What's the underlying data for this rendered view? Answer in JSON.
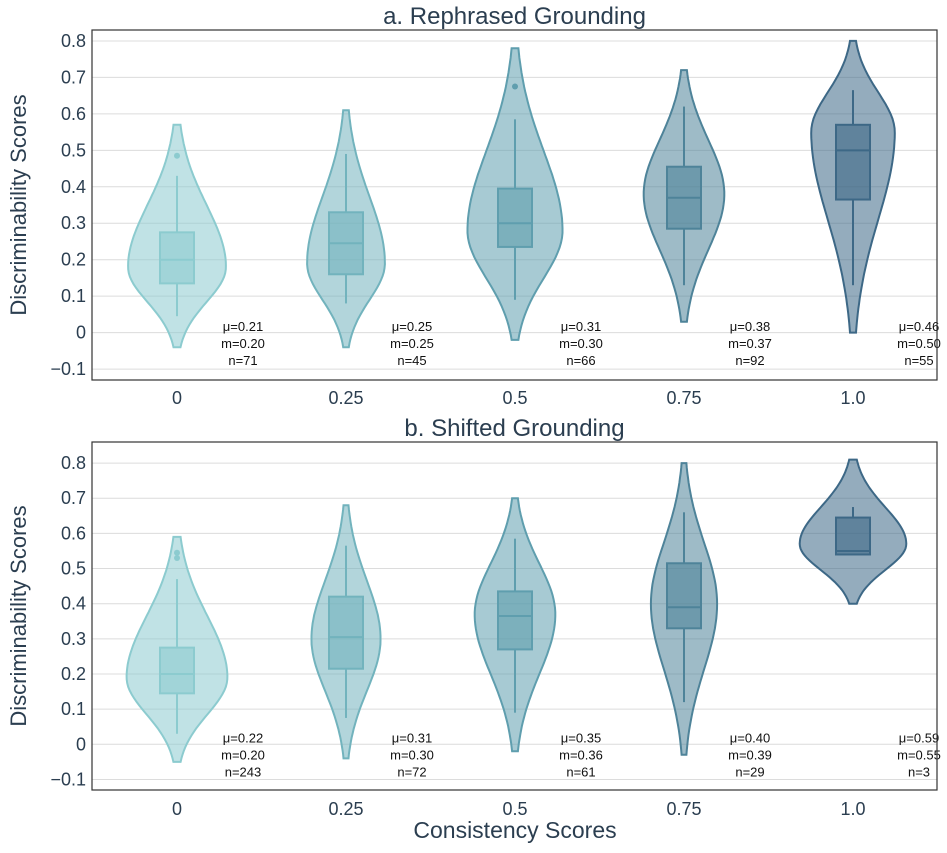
{
  "figure": {
    "xlabel": "Consistency Scores",
    "ylabel": "Discriminability Scores"
  },
  "chart_data": [
    {
      "type": "violin",
      "title": "a. Rephrased Grounding",
      "xlabel": "",
      "ylabel": "Discriminability Scores",
      "ylim": [
        -0.13,
        0.83
      ],
      "yticks": [
        -0.1,
        0,
        0.1,
        0.2,
        0.3,
        0.4,
        0.5,
        0.6,
        0.7,
        0.8
      ],
      "ytick_labels": [
        "−0.1",
        "0",
        "0.1",
        "0.2",
        "0.3",
        "0.4",
        "0.5",
        "0.6",
        "0.7",
        "0.8"
      ],
      "categories": [
        "0",
        "0.25",
        "0.5",
        "0.75",
        "1.0"
      ],
      "grid": true,
      "series": [
        {
          "category": "0",
          "color": "#8ccbcf",
          "violin": {
            "min": -0.04,
            "max": 0.57,
            "mode": 0.18,
            "peak": 0.68
          },
          "box": {
            "q1": 0.135,
            "median": 0.2,
            "q3": 0.275,
            "whisker_low": 0.045,
            "whisker_high": 0.43
          },
          "outliers": [
            0.485
          ],
          "annotation": [
            "μ=0.21",
            "m=0.20",
            "n=71"
          ]
        },
        {
          "category": "0.25",
          "color": "#72b3bd",
          "violin": {
            "min": -0.04,
            "max": 0.61,
            "mode": 0.19,
            "peak": 0.54
          },
          "box": {
            "q1": 0.16,
            "median": 0.245,
            "q3": 0.33,
            "whisker_low": 0.08,
            "whisker_high": 0.49
          },
          "outliers": [],
          "annotation": [
            "μ=0.25",
            "m=0.25",
            "n=45"
          ]
        },
        {
          "category": "0.5",
          "color": "#5f9eae",
          "violin": {
            "min": -0.02,
            "max": 0.78,
            "mode": 0.28,
            "peak": 0.66
          },
          "box": {
            "q1": 0.235,
            "median": 0.3,
            "q3": 0.395,
            "whisker_low": 0.09,
            "whisker_high": 0.585
          },
          "outliers": [
            0.675
          ],
          "annotation": [
            "μ=0.31",
            "m=0.30",
            "n=66"
          ]
        },
        {
          "category": "0.75",
          "color": "#4e8399",
          "violin": {
            "min": 0.03,
            "max": 0.72,
            "mode": 0.38,
            "peak": 0.56
          },
          "box": {
            "q1": 0.285,
            "median": 0.37,
            "q3": 0.455,
            "whisker_low": 0.13,
            "whisker_high": 0.62
          },
          "outliers": [],
          "annotation": [
            "μ=0.38",
            "m=0.37",
            "n=92"
          ]
        },
        {
          "category": "1.0",
          "color": "#3d6886",
          "violin": {
            "min": 0.0,
            "max": 0.8,
            "mode": 0.55,
            "peak": 0.58
          },
          "box": {
            "q1": 0.365,
            "median": 0.5,
            "q3": 0.57,
            "whisker_low": 0.13,
            "whisker_high": 0.665
          },
          "outliers": [],
          "annotation": [
            "μ=0.46",
            "m=0.50",
            "n=55"
          ]
        }
      ]
    },
    {
      "type": "violin",
      "title": "b. Shifted Grounding",
      "xlabel": "Consistency Scores",
      "ylabel": "Discriminability Scores",
      "ylim": [
        -0.13,
        0.86
      ],
      "yticks": [
        -0.1,
        0,
        0.1,
        0.2,
        0.3,
        0.4,
        0.5,
        0.6,
        0.7,
        0.8
      ],
      "ytick_labels": [
        "−0.1",
        "0",
        "0.1",
        "0.2",
        "0.3",
        "0.4",
        "0.5",
        "0.6",
        "0.7",
        "0.8"
      ],
      "categories": [
        "0",
        "0.25",
        "0.5",
        "0.75",
        "1.0"
      ],
      "grid": true,
      "series": [
        {
          "category": "0",
          "color": "#8ccbcf",
          "violin": {
            "min": -0.05,
            "max": 0.59,
            "mode": 0.19,
            "peak": 0.7
          },
          "box": {
            "q1": 0.145,
            "median": 0.2,
            "q3": 0.275,
            "whisker_low": 0.03,
            "whisker_high": 0.47
          },
          "outliers": [
            0.53,
            0.545
          ],
          "annotation": [
            "μ=0.22",
            "m=0.20",
            "n=243"
          ]
        },
        {
          "category": "0.25",
          "color": "#72b3bd",
          "violin": {
            "min": -0.04,
            "max": 0.68,
            "mode": 0.3,
            "peak": 0.48
          },
          "box": {
            "q1": 0.215,
            "median": 0.305,
            "q3": 0.42,
            "whisker_low": 0.075,
            "whisker_high": 0.565
          },
          "outliers": [],
          "annotation": [
            "μ=0.31",
            "m=0.30",
            "n=72"
          ]
        },
        {
          "category": "0.5",
          "color": "#5f9eae",
          "violin": {
            "min": -0.02,
            "max": 0.7,
            "mode": 0.37,
            "peak": 0.56
          },
          "box": {
            "q1": 0.27,
            "median": 0.365,
            "q3": 0.435,
            "whisker_low": 0.09,
            "whisker_high": 0.585
          },
          "outliers": [],
          "annotation": [
            "μ=0.35",
            "m=0.36",
            "n=61"
          ]
        },
        {
          "category": "0.75",
          "color": "#4e8399",
          "violin": {
            "min": -0.03,
            "max": 0.8,
            "mode": 0.4,
            "peak": 0.46
          },
          "box": {
            "q1": 0.33,
            "median": 0.39,
            "q3": 0.515,
            "whisker_low": 0.12,
            "whisker_high": 0.66
          },
          "outliers": [],
          "annotation": [
            "μ=0.40",
            "m=0.39",
            "n=29"
          ]
        },
        {
          "category": "1.0",
          "color": "#3d6886",
          "violin": {
            "min": 0.4,
            "max": 0.81,
            "mode": 0.57,
            "peak": 0.74
          },
          "box": {
            "q1": 0.54,
            "median": 0.55,
            "q3": 0.645,
            "whisker_low": 0.54,
            "whisker_high": 0.675
          },
          "outliers": [],
          "annotation": [
            "μ=0.59",
            "m=0.55",
            "n=3"
          ]
        }
      ]
    }
  ]
}
